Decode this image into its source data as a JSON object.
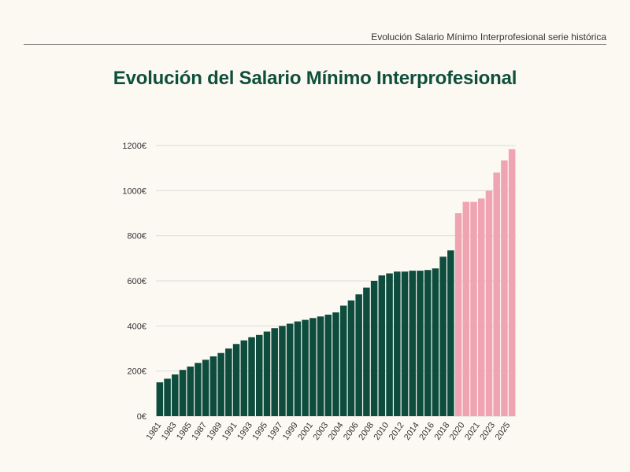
{
  "header": {
    "caption": "Evolución Salario Mínimo Interprofesional serie histórica"
  },
  "colors": {
    "historic": "#0e4d3d",
    "recent": "#f0a4b1",
    "grid": "#dcdcd6"
  },
  "chart_data": {
    "type": "bar",
    "title": "Evolución del Salario Mínimo Interprofesional",
    "xlabel": "",
    "ylabel": "",
    "ylim": [
      0,
      1200
    ],
    "yticks": [
      "0€",
      "200€",
      "400€",
      "600€",
      "800€",
      "1000€",
      "1200€"
    ],
    "grid": true,
    "x_tick_labels": [
      "1981",
      "1983",
      "1985",
      "1987",
      "1989",
      "1991",
      "1993",
      "1995",
      "1997",
      "1999",
      "2001",
      "2003",
      "2004",
      "2006",
      "2008",
      "2010",
      "2012",
      "2014",
      "2016",
      "2018",
      "2020",
      "2021",
      "2023",
      "2025"
    ],
    "categories": [
      "1981",
      "1982",
      "1983",
      "1984",
      "1985",
      "1986",
      "1987",
      "1988",
      "1989",
      "1990",
      "1991",
      "1992",
      "1993",
      "1994",
      "1995",
      "1996",
      "1997",
      "1998",
      "1999",
      "2000",
      "2001",
      "2002",
      "2003",
      "2004",
      "2004",
      "2005",
      "2006",
      "2007",
      "2008",
      "2009",
      "2010",
      "2011",
      "2012",
      "2013",
      "2014",
      "2015",
      "2016",
      "2017",
      "2018",
      "2019",
      "2020",
      "2021",
      "2021",
      "2022",
      "2023",
      "2024",
      "2025"
    ],
    "values": [
      150,
      166,
      185,
      205,
      220,
      236,
      250,
      265,
      280,
      300,
      320,
      336,
      350,
      360,
      375,
      390,
      400,
      410,
      420,
      427,
      435,
      442,
      450,
      460,
      490,
      513,
      540,
      570,
      600,
      624,
      633,
      641,
      641,
      645,
      645,
      648,
      655,
      707,
      735,
      900,
      950,
      950,
      965,
      1000,
      1080,
      1134,
      1184
    ],
    "recent_from_index": 39
  }
}
